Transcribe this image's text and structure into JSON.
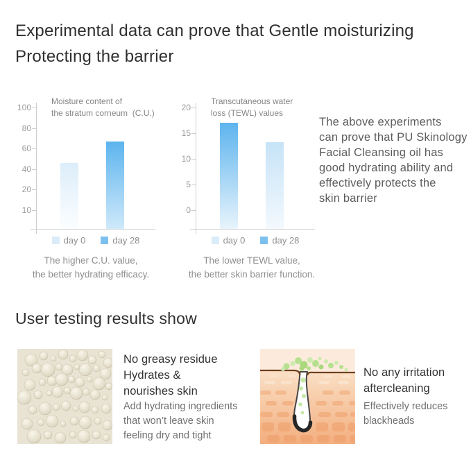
{
  "page": {
    "heading": "Experimental data can prove that Gentle moisturizing\nProtecting the barrier",
    "section2_heading": "User testing results show",
    "side_note": "The above experiments\ncan prove that PU Skinology\nFacial Cleansing oil has\ngood hydrating ability and\neffectively protects the\nskin barrier"
  },
  "chart_data": [
    {
      "type": "bar",
      "title": "Moisture content of\nthe stratum corneum  (C.U.)",
      "categories": [
        "day 0",
        "day 28"
      ],
      "values": [
        46,
        67
      ],
      "ticks": [
        100,
        80,
        60,
        40,
        20,
        10
      ],
      "ylim": [
        0,
        100
      ],
      "grid": false,
      "legend_position": "bottom",
      "bar_gradients": [
        [
          "#dcedfa",
          "#fcfeff"
        ],
        [
          "#5db4ee",
          "#cfe9fa"
        ]
      ],
      "legend": [
        {
          "label": "day 0",
          "color": "#d9ecf8"
        },
        {
          "label": "day 28",
          "color": "#7cc0ee"
        }
      ],
      "caption": "The higher C.U. value,\nthe better hydrating efficacy."
    },
    {
      "type": "bar",
      "title": "Transcutaneous water\nloss (TEWL) values",
      "categories": [
        "day 0",
        "day 28"
      ],
      "values": [
        17,
        13.3
      ],
      "ticks": [
        20,
        15,
        10,
        5,
        0
      ],
      "ylim": [
        0,
        20
      ],
      "grid": false,
      "legend_position": "bottom",
      "bar_gradients": [
        [
          "#5db4ee",
          "#e8f4fc"
        ],
        [
          "#c6e3f7",
          "#f3f9fe"
        ]
      ],
      "legend": [
        {
          "label": "day 0",
          "color": "#d9ecf8"
        },
        {
          "label": "day 28",
          "color": "#7cc0ee"
        }
      ],
      "caption": "The lower TEWL value,\nthe better skin barrier function."
    }
  ],
  "features": [
    {
      "image": "oil-bubbles",
      "heading": "No greasy residue\nHydrates &\nnourishes skin",
      "description": "Add hydrating ingredients\nthat won’t leave skin\nfeeling dry and tight"
    },
    {
      "image": "skin-pore-cross-section",
      "heading": "No any irritation\naftercleaning",
      "description": "Effectively reduces\nblackheads"
    }
  ],
  "colors": {
    "bar_blue": "#5db4ee",
    "bar_light_blue": "#d9ecf8",
    "axis_gray": "#cccccc",
    "heading_text": "#2f2f2f",
    "muted_text": "#8f8f8f"
  }
}
